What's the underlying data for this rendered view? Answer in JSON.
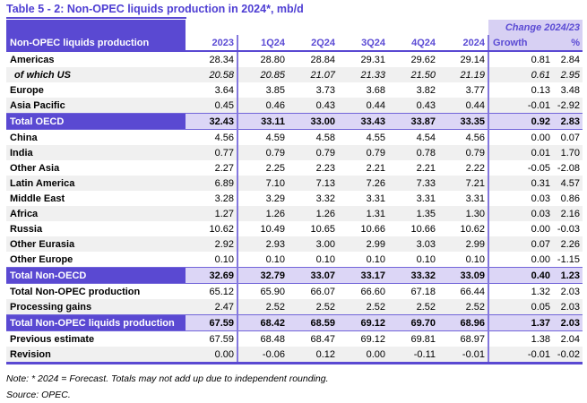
{
  "title": "Table 5 - 2: Non-OPEC liquids production in 2024*, mb/d",
  "colors": {
    "accent_purple": "#5a49d2",
    "header_text_purple": "#5b4bd4",
    "lavender_highlight": "#dcd6f6",
    "change_header_bg": "#d7d0f3",
    "stripe_gray": "#f0f0f0",
    "grid_line_purple": "#8478dd"
  },
  "table": {
    "header": {
      "label": "Non-OPEC liquids production",
      "change_label": "Change 2024/23",
      "columns": [
        "2023",
        "1Q24",
        "2Q24",
        "3Q24",
        "4Q24",
        "2024"
      ],
      "change_columns": [
        "Growth",
        "%"
      ]
    },
    "rows": [
      {
        "label": "Americas",
        "style": "normal",
        "values": [
          "28.34",
          "28.80",
          "28.84",
          "29.31",
          "29.62",
          "29.14",
          "0.81",
          "2.84"
        ]
      },
      {
        "label": "of which US",
        "style": "italic",
        "values": [
          "20.58",
          "20.85",
          "21.07",
          "21.33",
          "21.50",
          "21.19",
          "0.61",
          "2.95"
        ]
      },
      {
        "label": "Europe",
        "style": "normal",
        "values": [
          "3.64",
          "3.85",
          "3.73",
          "3.68",
          "3.82",
          "3.77",
          "0.13",
          "3.48"
        ]
      },
      {
        "label": "Asia Pacific",
        "style": "normal",
        "values": [
          "0.45",
          "0.46",
          "0.43",
          "0.44",
          "0.43",
          "0.44",
          "-0.01",
          "-2.92"
        ]
      },
      {
        "label": "Total OECD",
        "style": "total",
        "values": [
          "32.43",
          "33.11",
          "33.00",
          "33.43",
          "33.87",
          "33.35",
          "0.92",
          "2.83"
        ]
      },
      {
        "label": "China",
        "style": "normal",
        "values": [
          "4.56",
          "4.59",
          "4.58",
          "4.55",
          "4.54",
          "4.56",
          "0.00",
          "0.07"
        ]
      },
      {
        "label": "India",
        "style": "normal",
        "values": [
          "0.77",
          "0.79",
          "0.79",
          "0.79",
          "0.78",
          "0.79",
          "0.01",
          "1.70"
        ]
      },
      {
        "label": "Other Asia",
        "style": "normal",
        "values": [
          "2.27",
          "2.25",
          "2.23",
          "2.21",
          "2.21",
          "2.22",
          "-0.05",
          "-2.08"
        ]
      },
      {
        "label": "Latin America",
        "style": "normal",
        "values": [
          "6.89",
          "7.10",
          "7.13",
          "7.26",
          "7.33",
          "7.21",
          "0.31",
          "4.57"
        ]
      },
      {
        "label": "Middle East",
        "style": "normal",
        "values": [
          "3.28",
          "3.29",
          "3.32",
          "3.31",
          "3.31",
          "3.31",
          "0.03",
          "0.86"
        ]
      },
      {
        "label": "Africa",
        "style": "normal",
        "values": [
          "1.27",
          "1.26",
          "1.26",
          "1.31",
          "1.35",
          "1.30",
          "0.03",
          "2.16"
        ]
      },
      {
        "label": "Russia",
        "style": "normal",
        "values": [
          "10.62",
          "10.49",
          "10.65",
          "10.66",
          "10.66",
          "10.62",
          "0.00",
          "-0.03"
        ]
      },
      {
        "label": "Other Eurasia",
        "style": "normal",
        "values": [
          "2.92",
          "2.93",
          "3.00",
          "2.99",
          "3.03",
          "2.99",
          "0.07",
          "2.26"
        ]
      },
      {
        "label": "Other Europe",
        "style": "normal",
        "values": [
          "0.10",
          "0.10",
          "0.10",
          "0.10",
          "0.10",
          "0.10",
          "0.00",
          "-1.15"
        ]
      },
      {
        "label": "Total Non-OECD",
        "style": "total",
        "values": [
          "32.69",
          "32.79",
          "33.07",
          "33.17",
          "33.32",
          "33.09",
          "0.40",
          "1.23"
        ]
      },
      {
        "label": "Total Non-OPEC production",
        "style": "normal",
        "values": [
          "65.12",
          "65.90",
          "66.07",
          "66.60",
          "67.18",
          "66.44",
          "1.32",
          "2.03"
        ]
      },
      {
        "label": "Processing gains",
        "style": "normal",
        "values": [
          "2.47",
          "2.52",
          "2.52",
          "2.52",
          "2.52",
          "2.52",
          "0.05",
          "2.03"
        ]
      },
      {
        "label": "Total Non-OPEC liquids production",
        "style": "total",
        "values": [
          "67.59",
          "68.42",
          "68.59",
          "69.12",
          "69.70",
          "68.96",
          "1.37",
          "2.03"
        ]
      },
      {
        "label": "Previous estimate",
        "style": "normal",
        "values": [
          "67.59",
          "68.48",
          "68.47",
          "69.12",
          "69.81",
          "68.97",
          "1.38",
          "2.04"
        ]
      },
      {
        "label": "Revision",
        "style": "normal",
        "values": [
          "0.00",
          "-0.06",
          "0.12",
          "0.00",
          "-0.11",
          "-0.01",
          "-0.01",
          "-0.02"
        ]
      }
    ]
  },
  "notes": {
    "note": "Note: * 2024 = Forecast. Totals may not add up due to independent rounding.",
    "source": "Source: OPEC."
  }
}
